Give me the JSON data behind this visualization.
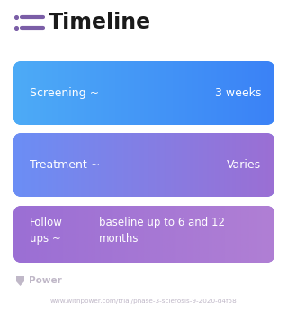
{
  "title": "Timeline",
  "background_color": "#ffffff",
  "title_color": "#1a1a1a",
  "title_fontsize": 17,
  "icon_color": "#7b5ea7",
  "rows": [
    {
      "label": "Screening ~",
      "value": "3 weeks",
      "color_left": "#4dabf7",
      "color_right": "#3b82f6"
    },
    {
      "label": "Treatment ~",
      "value": "Varies",
      "color_left": "#6b8ef5",
      "color_right": "#9b6fd4"
    },
    {
      "label": "Follow\nups ~",
      "value": "baseline up to 6 and 12\nmonths",
      "color_left": "#9b6fd4",
      "color_right": "#b07fd4"
    }
  ],
  "footer_logo_color": "#c0b8c8",
  "footer_text": "www.withpower.com/trial/phase-3-sclerosis-9-2020-d4f58",
  "footer_fontsize": 5.2,
  "power_text_color": "#c0b8c8",
  "power_fontsize": 7.5
}
